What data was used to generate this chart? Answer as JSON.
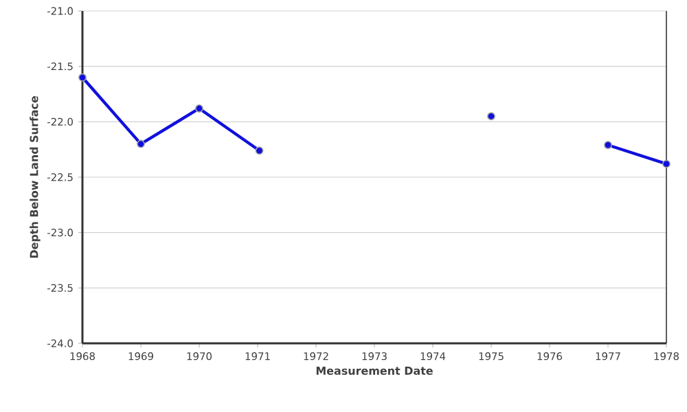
{
  "chart_data": {
    "type": "line",
    "xlabel": "Measurement Date",
    "ylabel": "Depth Below Land Surface",
    "x": [
      1968,
      1969,
      1970,
      1971.03,
      1973,
      1975,
      1976,
      1977,
      1978
    ],
    "series": [
      {
        "color": "#1010dd",
        "values": [
          -21.6,
          -22.2,
          -21.88,
          -22.26,
          null,
          -21.95,
          null,
          -22.21,
          -22.38
        ]
      }
    ],
    "xlim": [
      1968,
      1978
    ],
    "xticks": [
      1968,
      1969,
      1970,
      1971,
      1972,
      1973,
      1974,
      1975,
      1976,
      1977,
      1978
    ],
    "ylim": [
      -24.0,
      -21.0
    ],
    "yticks": [
      {
        "value": -24,
        "label": "-24.0"
      },
      {
        "value": -23.5,
        "label": "-23.5"
      },
      {
        "value": -23,
        "label": "-23.0"
      },
      {
        "value": -22.5,
        "label": "-22.5"
      },
      {
        "value": -22,
        "label": "-22.0"
      },
      {
        "value": -21.5,
        "label": "-21.5"
      },
      {
        "value": -21,
        "label": "-21.0"
      }
    ],
    "grid": "y",
    "marker": "circle",
    "line_style": "solid"
  }
}
